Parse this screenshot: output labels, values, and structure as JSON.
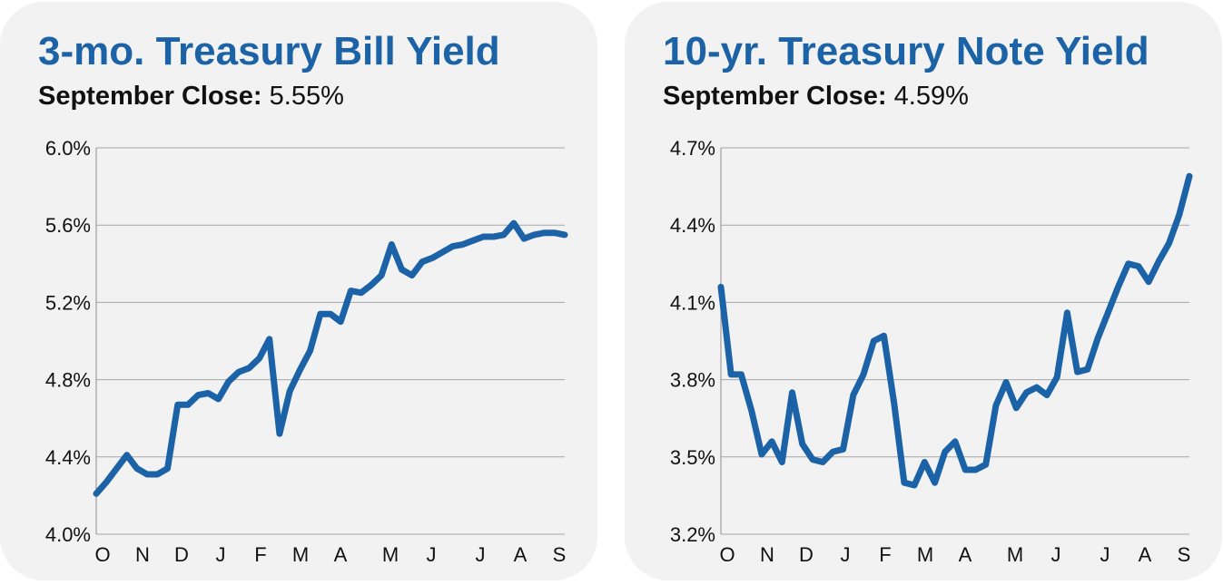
{
  "charts": [
    {
      "title": "3-mo. Treasury Bill Yield",
      "subtitle_label": "September Close:",
      "subtitle_value": "5.55%"
    },
    {
      "title": "10-yr. Treasury Note Yield",
      "subtitle_label": "September Close:",
      "subtitle_value": "4.59%"
    }
  ],
  "chart_data": [
    {
      "type": "line",
      "title": "3-mo. Treasury Bill Yield",
      "xlabel": "",
      "ylabel": "",
      "x_tick_labels": [
        "O",
        "N",
        "D",
        "J",
        "F",
        "M",
        "A",
        "M",
        "J",
        "J",
        "A",
        "S"
      ],
      "y_tick_labels": [
        "6.0%",
        "5.6%",
        "5.2%",
        "4.8%",
        "4.4%",
        "4.0%"
      ],
      "ylim": [
        4.0,
        6.0
      ],
      "grid": true,
      "line_color": "#1b63a6",
      "values": [
        4.21,
        4.27,
        4.34,
        4.41,
        4.34,
        4.31,
        4.31,
        4.34,
        4.67,
        4.67,
        4.72,
        4.73,
        4.7,
        4.79,
        4.84,
        4.86,
        4.91,
        5.01,
        4.52,
        4.74,
        4.85,
        4.95,
        5.14,
        5.14,
        5.1,
        5.26,
        5.25,
        5.29,
        5.34,
        5.5,
        5.37,
        5.34,
        5.41,
        5.43,
        5.46,
        5.49,
        5.5,
        5.52,
        5.54,
        5.54,
        5.55,
        5.61,
        5.53,
        5.55,
        5.56,
        5.56,
        5.55
      ]
    },
    {
      "type": "line",
      "title": "10-yr. Treasury Note Yield",
      "xlabel": "",
      "ylabel": "",
      "x_tick_labels": [
        "O",
        "N",
        "D",
        "J",
        "F",
        "M",
        "A",
        "M",
        "J",
        "J",
        "A",
        "S"
      ],
      "y_tick_labels": [
        "4.7%",
        "4.4%",
        "4.1%",
        "3.8%",
        "3.5%",
        "3.2%"
      ],
      "ylim": [
        3.2,
        4.7
      ],
      "grid": true,
      "line_color": "#1b63a6",
      "values": [
        4.16,
        3.82,
        3.82,
        3.68,
        3.51,
        3.56,
        3.48,
        3.75,
        3.55,
        3.49,
        3.48,
        3.52,
        3.53,
        3.74,
        3.82,
        3.95,
        3.97,
        3.71,
        3.4,
        3.39,
        3.48,
        3.4,
        3.52,
        3.56,
        3.45,
        3.45,
        3.47,
        3.7,
        3.79,
        3.69,
        3.75,
        3.77,
        3.74,
        3.81,
        4.06,
        3.83,
        3.84,
        3.96,
        4.06,
        4.16,
        4.25,
        4.24,
        4.18,
        4.26,
        4.33,
        4.44,
        4.59
      ]
    }
  ]
}
